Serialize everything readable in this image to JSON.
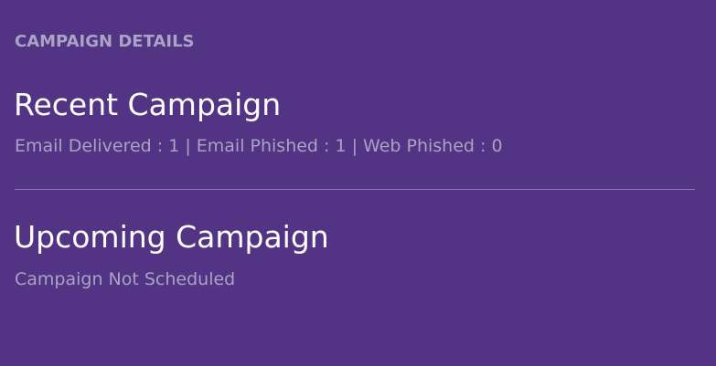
{
  "header": {
    "label": "CAMPAIGN DETAILS"
  },
  "recent": {
    "title": "Recent Campaign",
    "stats": "Email Delivered : 1 | Email Phished : 1 | Web Phished : 0"
  },
  "upcoming": {
    "title": "Upcoming Campaign",
    "status": "Campaign Not Scheduled"
  },
  "colors": {
    "background": "#523384",
    "title": "#ffffff",
    "muted": "#a9a3c4"
  }
}
